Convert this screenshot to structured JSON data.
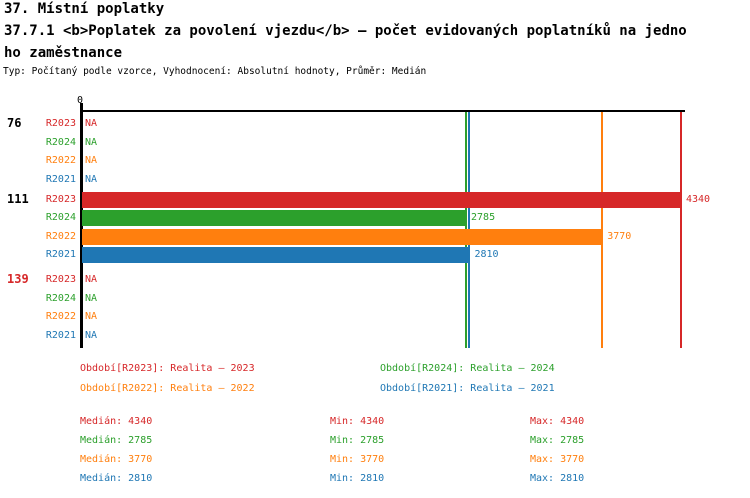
{
  "header": {
    "line1": "37. Místní poplatky",
    "line2": "37.7.1 <b>Poplatek za povolení vjezdu</b> – počet evidovaných poplatníků na jedno",
    "line3": "ho zaměstnance",
    "meta": "Typ: Počítaný podle vzorce, Vyhodnocení: Absolutní hodnoty, Průměr: Medián"
  },
  "chart_data": {
    "type": "bar",
    "orientation": "horizontal",
    "axis": {
      "zero_label": "0",
      "scale_max": 4340,
      "grid": false
    },
    "na_text": "NA",
    "series_order": [
      "R2023",
      "R2024",
      "R2022",
      "R2021"
    ],
    "series_colors": {
      "R2023": "#d62728",
      "R2024": "#2ca02c",
      "R2022": "#ff7f0e",
      "R2021": "#1f77b4"
    },
    "groups": [
      {
        "label": "76",
        "label_color": "#000000",
        "values": {
          "R2023": null,
          "R2024": null,
          "R2022": null,
          "R2021": null
        }
      },
      {
        "label": "111",
        "label_color": "#000000",
        "values": {
          "R2023": 4340,
          "R2024": 2785,
          "R2022": 3770,
          "R2021": 2810
        }
      },
      {
        "label": "139",
        "label_color": "#d62728",
        "values": {
          "R2023": null,
          "R2024": null,
          "R2022": null,
          "R2021": null
        }
      }
    ],
    "median_lines": [
      {
        "series": "R2023",
        "value": 4340
      },
      {
        "series": "R2024",
        "value": 2785
      },
      {
        "series": "R2022",
        "value": 3770
      },
      {
        "series": "R2021",
        "value": 2810
      }
    ]
  },
  "legend": {
    "items": [
      {
        "text": "Období[R2023]: Realita – 2023",
        "color": "#d62728"
      },
      {
        "text": "Období[R2024]: Realita – 2024",
        "color": "#2ca02c"
      },
      {
        "text": "Období[R2022]: Realita – 2022",
        "color": "#ff7f0e"
      },
      {
        "text": "Období[R2021]: Realita – 2021",
        "color": "#1f77b4"
      }
    ]
  },
  "stats": {
    "labels": [
      "Medián",
      "Min",
      "Max"
    ],
    "rows": [
      {
        "color": "#d62728",
        "values": [
          4340,
          4340,
          4340
        ]
      },
      {
        "color": "#2ca02c",
        "values": [
          2785,
          2785,
          2785
        ]
      },
      {
        "color": "#ff7f0e",
        "values": [
          3770,
          3770,
          3770
        ]
      },
      {
        "color": "#1f77b4",
        "values": [
          2810,
          2810,
          2810
        ]
      }
    ]
  }
}
